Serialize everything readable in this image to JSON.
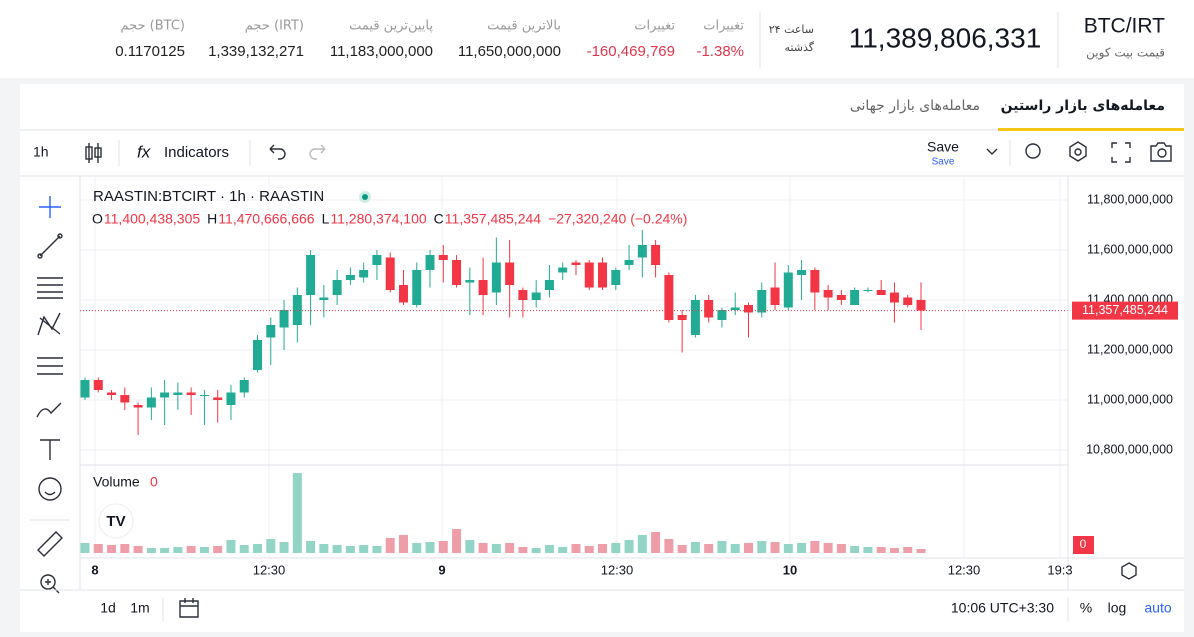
{
  "header": {
    "pair": "BTC/IRT",
    "pair_subtitle": "قیمت بیت کوین",
    "last_price": "11,389,806,331",
    "period_line1": "۲۴ ساعت",
    "period_line2": "گذشته",
    "stats": [
      {
        "label": "تغییرات",
        "value": "-1.38%",
        "color": "#e0364b"
      },
      {
        "label": "تغییرات",
        "value": "-160,469,769",
        "color": "#e0364b"
      },
      {
        "label": "بالاترین قیمت",
        "value": "11,650,000,000",
        "color": "#222222"
      },
      {
        "label": "پایین‌ترین قیمت",
        "value": "11,183,000,000",
        "color": "#222222"
      },
      {
        "label": "حجم (IRT)",
        "value": "1,339,132,271",
        "color": "#222222"
      },
      {
        "label": "حجم (BTC)",
        "value": "0.1170125",
        "color": "#222222"
      }
    ]
  },
  "tabs": [
    "معامله‌های بازار راستین",
    "معامله‌های بازار جهانی"
  ],
  "toolbar": {
    "interval": "1h",
    "indicators": "Indicators",
    "save": "Save",
    "save_sub": "Save"
  },
  "chart_data": {
    "type": "candlestick",
    "title": "RAASTIN:BTCIRT · 1h · RAASTIN",
    "legend": [
      {
        "key": "O",
        "value": "11,400,438,305"
      },
      {
        "key": "H",
        "value": "11,470,666,666"
      },
      {
        "key": "L",
        "value": "11,280,374,100"
      },
      {
        "key": "C",
        "value": "11,357,485,244"
      }
    ],
    "change": "−27,320,240 (−0.24%)",
    "volume_label": "Volume",
    "volume_value": "0",
    "volume_badge": "0",
    "up_color": "#22ab94",
    "down_color": "#f23645",
    "up_volume_color": "#92d5c6",
    "down_volume_color": "#ee9ea8",
    "ylim": [
      10740000000,
      11880000000
    ],
    "yticks": [
      {
        "value": 11800000000,
        "label": "11,800,000,000"
      },
      {
        "value": 11600000000,
        "label": "11,600,000,000"
      },
      {
        "value": 11400000000,
        "label": "11,400,000,000"
      },
      {
        "value": 11200000000,
        "label": "11,200,000,000"
      },
      {
        "value": 11000000000,
        "label": "11,000,000,000"
      },
      {
        "value": 10800000000,
        "label": "10,800,000,000"
      }
    ],
    "last_price": {
      "value": 11357485244,
      "label": "11,357,485,244"
    },
    "x_labels": [
      "8",
      "12:30",
      "9",
      "12:30",
      "10",
      "12:30",
      "19:3"
    ],
    "open": [
      11010000000,
      11080000000,
      11030000000,
      11020000000,
      10980000000,
      10970000000,
      11010000000,
      11020000000,
      11030000000,
      11020000000,
      11010000000,
      10980000000,
      11030000000,
      11120000000,
      11250000000,
      11290000000,
      11300000000,
      11420000000,
      11400000000,
      11420000000,
      11480000000,
      11490000000,
      11540000000,
      11570000000,
      11460000000,
      11380000000,
      11520000000,
      11580000000,
      11560000000,
      11470000000,
      11480000000,
      11430000000,
      11550000000,
      11440000000,
      11400000000,
      11440000000,
      11510000000,
      11550000000,
      11550000000,
      11550000000,
      11460000000,
      11540000000,
      11570000000,
      11620000000,
      11500000000,
      11340000000,
      11260000000,
      11400000000,
      11320000000,
      11360000000,
      11380000000,
      11350000000,
      11450000000,
      11370000000,
      11500000000,
      11520000000,
      11440000000,
      11420000000,
      11380000000,
      11440000000,
      11440000000,
      11430000000,
      11410000000,
      11400438305
    ],
    "high": [
      11090000000,
      11090000000,
      11040000000,
      11050000000,
      10990000000,
      11050000000,
      11080000000,
      11070000000,
      11050000000,
      11040000000,
      11040000000,
      11060000000,
      11090000000,
      11260000000,
      11330000000,
      11400000000,
      11450000000,
      11600000000,
      11460000000,
      11520000000,
      11530000000,
      11550000000,
      11600000000,
      11590000000,
      11520000000,
      11550000000,
      11600000000,
      11620000000,
      11580000000,
      11530000000,
      11570000000,
      11650000000,
      11640000000,
      11450000000,
      11480000000,
      11540000000,
      11550000000,
      11560000000,
      11560000000,
      11570000000,
      11530000000,
      11620000000,
      11680000000,
      11640000000,
      11510000000,
      11360000000,
      11420000000,
      11420000000,
      11370000000,
      11430000000,
      11390000000,
      11470000000,
      11550000000,
      11540000000,
      11560000000,
      11530000000,
      11460000000,
      11440000000,
      11450000000,
      11450000000,
      11480000000,
      11470000000,
      11420000000,
      11470666666
    ],
    "low": [
      11000000000,
      11030000000,
      11000000000,
      10960000000,
      10860000000,
      10920000000,
      10900000000,
      10960000000,
      10940000000,
      10900000000,
      10910000000,
      10920000000,
      11010000000,
      11110000000,
      11140000000,
      11200000000,
      11230000000,
      11300000000,
      11330000000,
      11380000000,
      11460000000,
      11470000000,
      11480000000,
      11430000000,
      11380000000,
      11370000000,
      11450000000,
      11470000000,
      11450000000,
      11340000000,
      11340000000,
      11380000000,
      11330000000,
      11330000000,
      11370000000,
      11410000000,
      11480000000,
      11500000000,
      11440000000,
      11440000000,
      11440000000,
      11520000000,
      11490000000,
      11490000000,
      11310000000,
      11190000000,
      11250000000,
      11310000000,
      11290000000,
      11340000000,
      11250000000,
      11330000000,
      11360000000,
      11360000000,
      11400000000,
      11360000000,
      11360000000,
      11380000000,
      11380000000,
      11430000000,
      11420000000,
      11310000000,
      11370000000,
      11280374100
    ],
    "close": [
      11080000000,
      11040000000,
      11020000000,
      10990000000,
      10970000000,
      11010000000,
      11030000000,
      11030000000,
      11020000000,
      11020000000,
      11000000000,
      11030000000,
      11080000000,
      11240000000,
      11300000000,
      11360000000,
      11420000000,
      11580000000,
      11410000000,
      11480000000,
      11500000000,
      11520000000,
      11580000000,
      11440000000,
      11390000000,
      11520000000,
      11580000000,
      11560000000,
      11460000000,
      11480000000,
      11420000000,
      11550000000,
      11460000000,
      11400000000,
      11430000000,
      11480000000,
      11530000000,
      11540000000,
      11450000000,
      11450000000,
      11520000000,
      11560000000,
      11620000000,
      11540000000,
      11320000000,
      11320000000,
      11400000000,
      11330000000,
      11360000000,
      11370000000,
      11350000000,
      11440000000,
      11380000000,
      11510000000,
      11520000000,
      11430000000,
      11410000000,
      11400000000,
      11440000000,
      11440000000,
      11420000000,
      11390000000,
      11380000000,
      11357485244
    ],
    "volume": [
      10,
      9,
      8,
      9,
      7,
      5,
      5,
      6,
      7,
      6,
      7,
      13,
      8,
      9,
      14,
      11,
      80,
      12,
      9,
      8,
      7,
      8,
      7,
      15,
      18,
      10,
      11,
      12,
      24,
      13,
      10,
      9,
      10,
      6,
      5,
      8,
      6,
      9,
      7,
      9,
      10,
      13,
      18,
      21,
      14,
      8,
      11,
      9,
      12,
      9,
      10,
      12,
      11,
      9,
      10,
      12,
      10,
      9,
      7,
      6,
      6,
      5,
      6,
      4
    ]
  },
  "bottom": {
    "ranges": [
      "1d",
      "1m"
    ],
    "clock": "10:06 UTC+3:30",
    "percent": "%",
    "log": "log",
    "auto": "auto"
  }
}
